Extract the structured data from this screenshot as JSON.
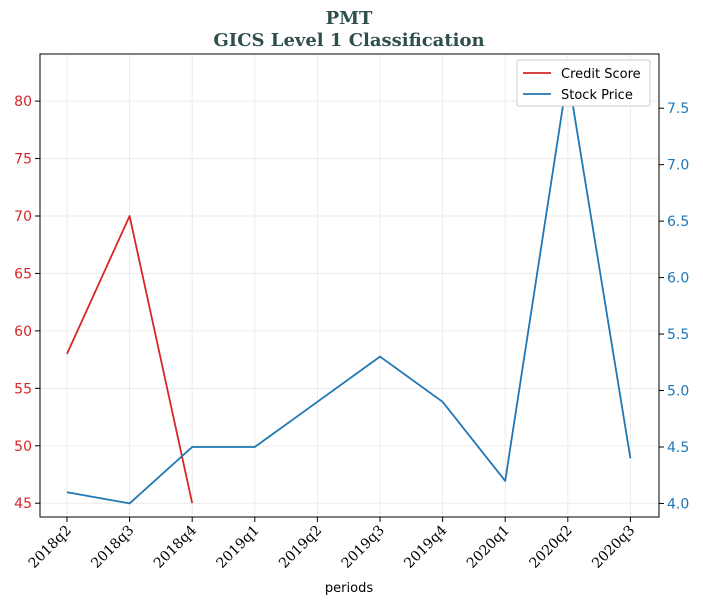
{
  "chart_data": {
    "type": "line",
    "title": "PMT",
    "subtitle": "GICS Level 1 Classification",
    "xlabel": "periods",
    "categories": [
      "2018q2",
      "2018q3",
      "2018q4",
      "2019q1",
      "2019q2",
      "2019q3",
      "2019q4",
      "2020q1",
      "2020q2",
      "2020q3"
    ],
    "series": [
      {
        "name": "Credit Score",
        "axis": "left",
        "color": "#d62728",
        "values": [
          58,
          70,
          45,
          null,
          null,
          null,
          null,
          null,
          null,
          null
        ]
      },
      {
        "name": "Stock Price",
        "axis": "right",
        "color": "#1f77b4",
        "values": [
          4.1,
          4.0,
          4.5,
          4.5,
          4.9,
          5.3,
          4.9,
          4.2,
          7.8,
          4.4
        ]
      }
    ],
    "y_left": {
      "ticks": [
        45,
        50,
        55,
        60,
        65,
        70,
        75,
        80
      ],
      "range": [
        43.8,
        84.1
      ],
      "color": "#d62728"
    },
    "y_right": {
      "ticks": [
        4.0,
        4.5,
        5.0,
        5.5,
        6.0,
        6.5,
        7.0,
        7.5
      ],
      "tick_labels": [
        "4.0",
        "4.5",
        "5.0",
        "5.5",
        "6.0",
        "6.5",
        "7.0",
        "7.5"
      ],
      "range": [
        3.88,
        7.98
      ],
      "color": "#1f77b4"
    },
    "grid": true,
    "legend_position": "top-right"
  }
}
